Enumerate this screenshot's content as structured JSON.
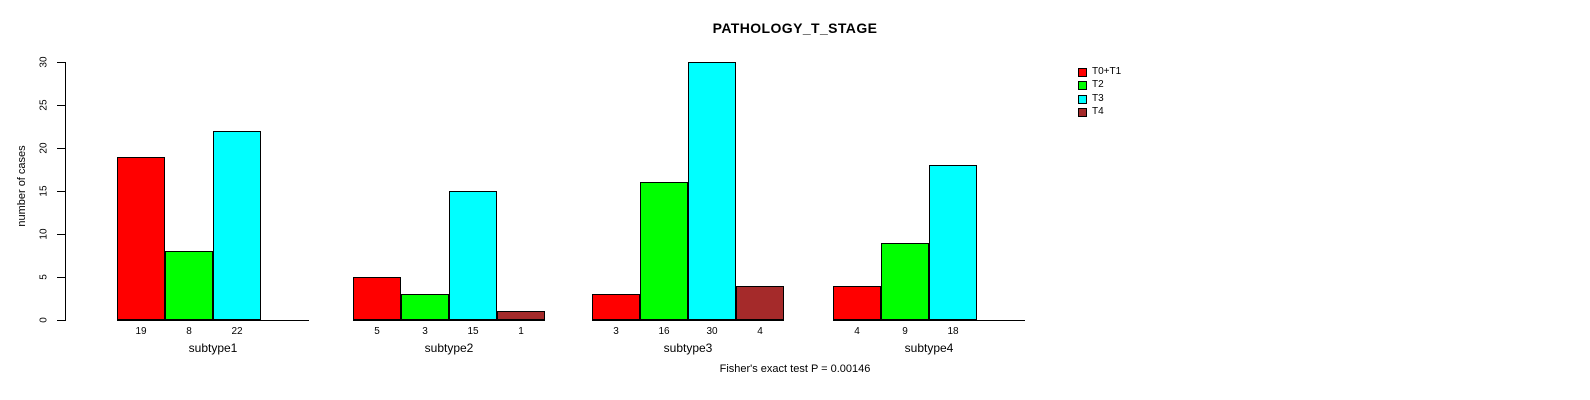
{
  "chart_data": {
    "type": "bar",
    "title": "PATHOLOGY_T_STAGE",
    "ylabel": "number of cases",
    "xlabel": "",
    "ylim": [
      0,
      30
    ],
    "yticks": [
      0,
      5,
      10,
      15,
      20,
      25,
      30
    ],
    "grid": false,
    "legend_position": "top-right",
    "bar_border_color": "#000000",
    "categories": [
      "subtype1",
      "subtype2",
      "subtype3",
      "subtype4"
    ],
    "series": [
      {
        "name": "T0+T1",
        "color": "#ff0000",
        "values": [
          19,
          5,
          3,
          4
        ]
      },
      {
        "name": "T2",
        "color": "#00ff00",
        "values": [
          8,
          3,
          16,
          9
        ]
      },
      {
        "name": "T3",
        "color": "#00ffff",
        "values": [
          22,
          15,
          30,
          18
        ]
      },
      {
        "name": "T4",
        "color": "#a52a2a",
        "values": [
          0,
          1,
          4,
          0
        ]
      }
    ],
    "bar_value_labels": "shown under each bar when value > 0",
    "annotation": "Fisher's exact test P = 0.00146"
  }
}
